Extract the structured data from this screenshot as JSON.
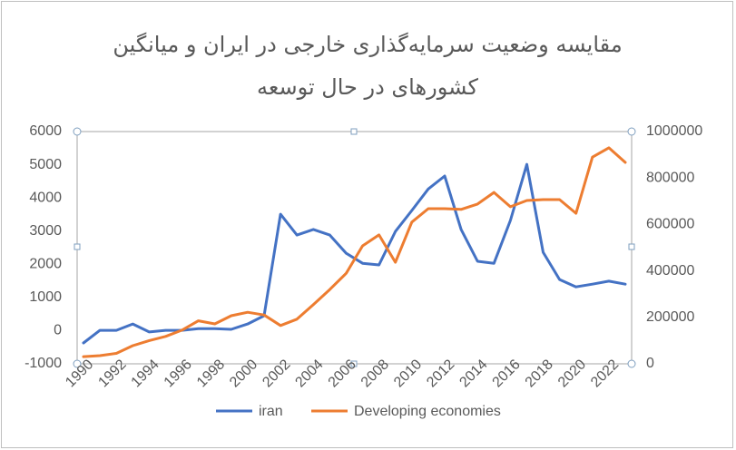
{
  "chart_data": {
    "type": "line",
    "title": [
      "مقایسه وضعیت سرمایه‌گذاری خارجی در ایران و میانگین",
      "کشورهای در حال توسعه"
    ],
    "categories": [
      "1990",
      null,
      "1992",
      null,
      "1994",
      null,
      "1996",
      null,
      "1998",
      null,
      "2000",
      null,
      "2002",
      null,
      "2004",
      null,
      "2006",
      null,
      "2008",
      null,
      "2010",
      null,
      "2012",
      null,
      "2014",
      null,
      "2016",
      null,
      "2018",
      null,
      "2020",
      null,
      "2022",
      null
    ],
    "series": [
      {
        "name": "iran",
        "color": "#4472c4",
        "axis": "y",
        "values": [
          -370,
          10,
          10,
          200,
          -40,
          10,
          10,
          60,
          60,
          40,
          200,
          450,
          3510,
          2880,
          3050,
          2880,
          2330,
          2030,
          1980,
          2990,
          3620,
          4270,
          4660,
          3050,
          2090,
          2030,
          3320,
          5010,
          2360,
          1540,
          1320,
          1400,
          1490,
          1400
        ]
      },
      {
        "name": "Developing economies",
        "color": "#ed7d31",
        "axis": "y2",
        "values": [
          31000,
          35000,
          45000,
          78000,
          100000,
          118000,
          145000,
          185000,
          172000,
          207000,
          222000,
          210000,
          165000,
          192000,
          255000,
          320000,
          390000,
          508000,
          555000,
          437000,
          610000,
          668000,
          668000,
          665000,
          688000,
          738000,
          676000,
          703000,
          707000,
          707000,
          648000,
          890000,
          930000,
          867000
        ]
      }
    ],
    "ylim": [
      -1000,
      6000
    ],
    "yticks": [
      -1000,
      0,
      1000,
      2000,
      3000,
      4000,
      5000,
      6000
    ],
    "y2lim": [
      0,
      1000000
    ],
    "y2ticks": [
      0,
      200000,
      400000,
      600000,
      800000,
      1000000
    ],
    "grid": false,
    "legend": "bottom"
  }
}
